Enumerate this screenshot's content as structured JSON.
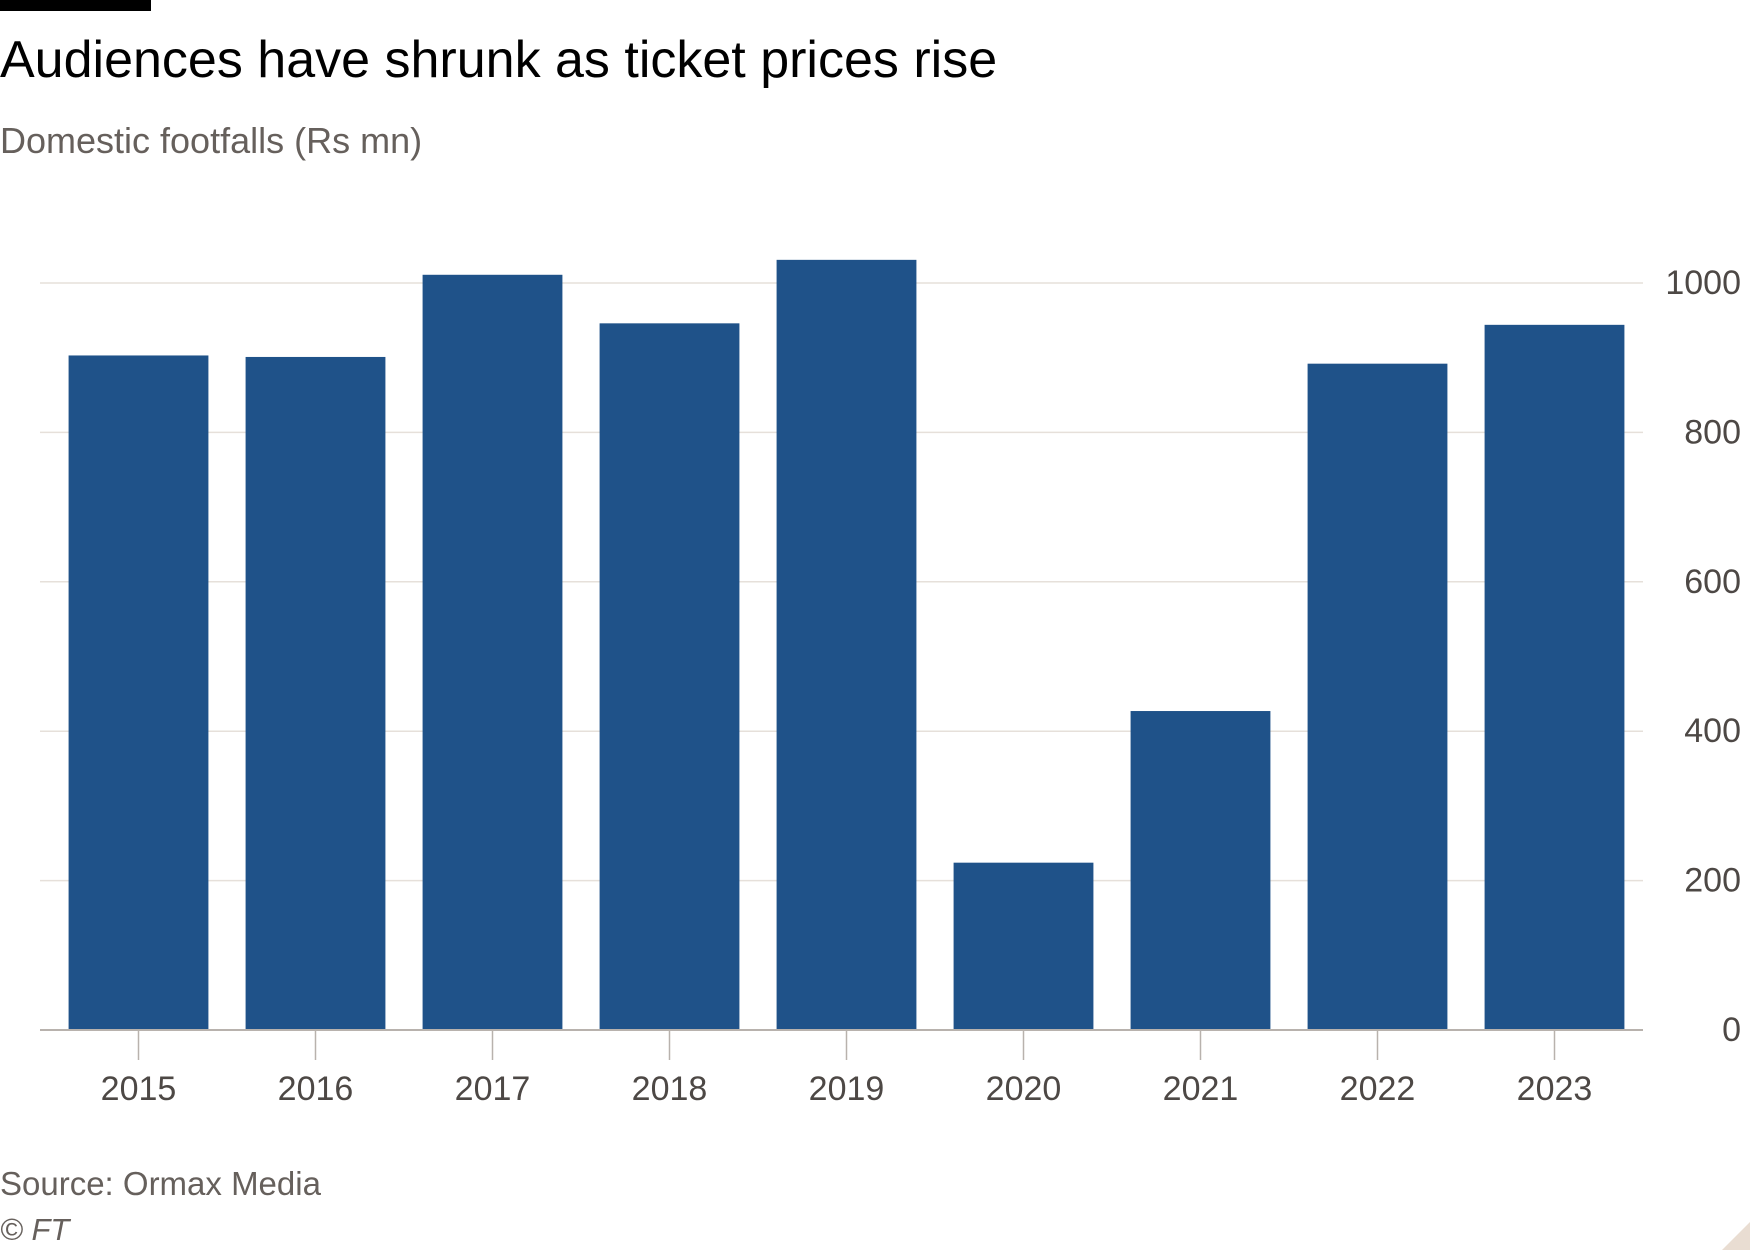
{
  "title": "Audiences have shrunk as ticket prices rise",
  "subtitle": "Domestic footfalls (Rs mn)",
  "source": "Source: Ormax Media",
  "credit": "© FT",
  "colors": {
    "bar": "#1f5289",
    "grid": "#e6e0da",
    "axis": "#b8b2ad",
    "tick_text": "#4d4845"
  },
  "chart_data": {
    "type": "bar",
    "title": "Audiences have shrunk as ticket prices rise",
    "subtitle": "Domestic footfalls (Rs mn)",
    "categories": [
      "2015",
      "2016",
      "2017",
      "2018",
      "2019",
      "2020",
      "2021",
      "2022",
      "2023"
    ],
    "values": [
      903,
      901,
      1011,
      946,
      1031,
      224,
      427,
      892,
      944
    ],
    "xlabel": "",
    "ylabel": "",
    "ylim": [
      0,
      1000
    ],
    "yticks": [
      0,
      200,
      400,
      600,
      800,
      1000
    ],
    "yaxis_position": "right",
    "grid": true,
    "legend": "none"
  }
}
